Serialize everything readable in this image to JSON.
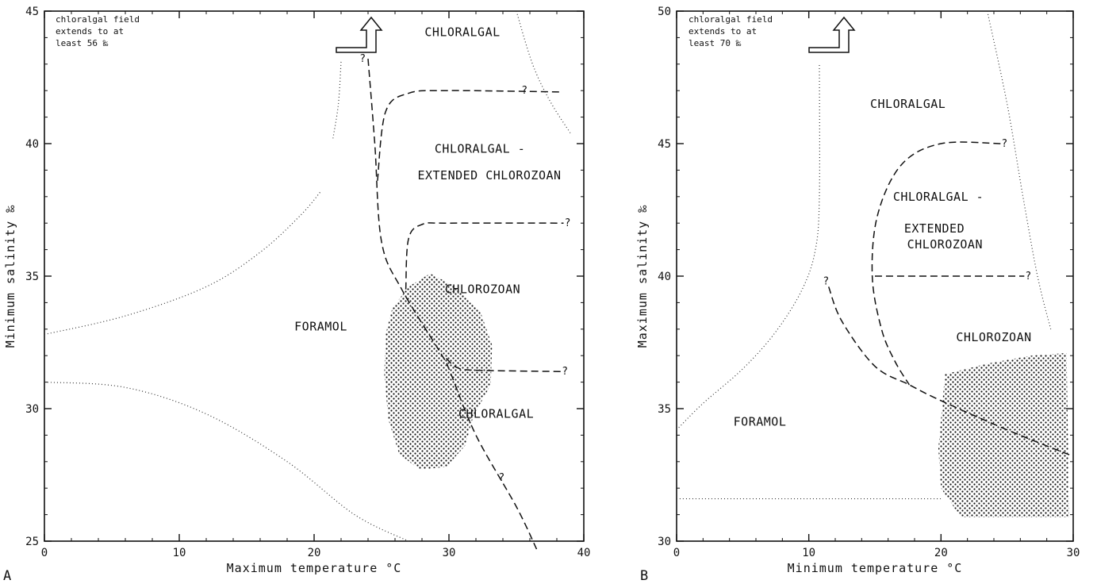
{
  "panel_letters": {
    "a": "A",
    "b": "B"
  },
  "chart_data": [
    {
      "type": "line",
      "panel": "A",
      "xlabel": "Maximum temperature °C",
      "ylabel": "Minimum salinity ‰",
      "xlim": [
        0,
        40
      ],
      "ylim": [
        25,
        45
      ],
      "xticks": [
        0,
        10,
        20,
        30,
        40
      ],
      "yticks": [
        25,
        30,
        35,
        40,
        45
      ],
      "note": [
        "chloralgal field",
        "extends to at",
        "least 56 ‰"
      ],
      "regions": [
        {
          "name": "CHLORALGAL",
          "x": 31,
          "y": 44.2
        },
        {
          "name": "CHLORALGAL -",
          "x": 32.3,
          "y": 39.8
        },
        {
          "name": "EXTENDED CHLOROZOAN",
          "x": 33,
          "y": 38.8
        },
        {
          "name": "CHLOROZOAN",
          "x": 32.5,
          "y": 34.5
        },
        {
          "name": "FORAMOL",
          "x": 20.5,
          "y": 33.1
        },
        {
          "name": "CHLORALGAL",
          "x": 33.5,
          "y": 29.8
        }
      ],
      "dotted_boundaries": [
        {
          "points": [
            [
              0,
              32.8
            ],
            [
              6,
              33.5
            ],
            [
              12,
              34.6
            ],
            [
              16,
              35.9
            ],
            [
              19,
              37.3
            ],
            [
              20.5,
              38.2
            ]
          ]
        },
        {
          "points": [
            [
              21.4,
              40.2
            ],
            [
              21.8,
              41.5
            ],
            [
              22,
              43.1
            ]
          ]
        },
        {
          "points": [
            [
              0,
              31
            ],
            [
              6,
              30.8
            ],
            [
              12,
              29.8
            ],
            [
              18,
              28
            ],
            [
              23,
              26
            ],
            [
              27,
              25
            ]
          ]
        },
        {
          "points": [
            [
              35,
              45
            ],
            [
              36.2,
              43
            ],
            [
              37.5,
              41.6
            ],
            [
              39,
              40.4
            ]
          ]
        }
      ],
      "dashed_boundaries": [
        {
          "points": [
            [
              24,
              43.2
            ],
            [
              24.5,
              40
            ],
            [
              25,
              36.3
            ],
            [
              26.5,
              34.5
            ],
            [
              29.5,
              32
            ],
            [
              30,
              31.5
            ],
            [
              32,
              29
            ],
            [
              35,
              26.3
            ],
            [
              36.5,
              24.7
            ]
          ]
        },
        {
          "points": [
            [
              24.7,
              38.6
            ],
            [
              25.3,
              41.2
            ],
            [
              27,
              41.9
            ],
            [
              30,
              42
            ],
            [
              38.2,
              41.95
            ]
          ]
        },
        {
          "points": [
            [
              26.8,
              34.5
            ],
            [
              27,
              36.4
            ],
            [
              28,
              36.95
            ],
            [
              30,
              37
            ],
            [
              38.5,
              37
            ]
          ]
        },
        {
          "points": [
            [
              29.8,
              31.9
            ],
            [
              30.6,
              31.55
            ],
            [
              32,
              31.45
            ],
            [
              38.3,
              31.4
            ]
          ]
        }
      ],
      "uncertain_marks": [
        {
          "label": "?",
          "x": 23.6,
          "y": 43.2
        },
        {
          "label": "?",
          "x": 35.6,
          "y": 42
        },
        {
          "label": "?",
          "x": 38.8,
          "y": 37
        },
        {
          "label": "?",
          "x": 38.6,
          "y": 31.4
        },
        {
          "label": "?",
          "x": 33.9,
          "y": 27.4
        }
      ],
      "stippled_area": {
        "outline": [
          [
            25.8,
            33.8
          ],
          [
            27,
            34.6
          ],
          [
            28.6,
            35.1
          ],
          [
            30.5,
            34.6
          ],
          [
            32.3,
            33.7
          ],
          [
            33.2,
            32.4
          ],
          [
            33.1,
            30.9
          ],
          [
            31.8,
            29.7
          ],
          [
            31.2,
            28.6
          ],
          [
            29.8,
            27.8
          ],
          [
            27.8,
            27.7
          ],
          [
            26.3,
            28.3
          ],
          [
            25.5,
            29.6
          ],
          [
            25.2,
            31.3
          ],
          [
            25.3,
            32.8
          ]
        ]
      }
    },
    {
      "type": "line",
      "panel": "B",
      "xlabel": "Minimum temperature °C",
      "ylabel": "Maximum salinity ‰",
      "xlim": [
        0,
        30
      ],
      "ylim": [
        30,
        50
      ],
      "xticks": [
        0,
        10,
        20,
        30
      ],
      "yticks": [
        30,
        35,
        40,
        45,
        50
      ],
      "note": [
        "chloralgal field",
        "extends to at",
        "least 70 ‰"
      ],
      "regions": [
        {
          "name": "CHLORALGAL",
          "x": 17.5,
          "y": 46.5
        },
        {
          "name": "CHLORALGAL -",
          "x": 19.8,
          "y": 43
        },
        {
          "name": "EXTENDED",
          "x": 19.5,
          "y": 41.8
        },
        {
          "name": "CHLOROZOAN",
          "x": 20.3,
          "y": 41.2
        },
        {
          "name": "CHLOROZOAN",
          "x": 24,
          "y": 37.7
        },
        {
          "name": "FORAMOL",
          "x": 6.3,
          "y": 34.5
        }
      ],
      "dotted_boundaries": [
        {
          "points": [
            [
              0,
              34.2
            ],
            [
              2,
              35.2
            ],
            [
              5,
              36.5
            ],
            [
              7.5,
              37.9
            ],
            [
              9.5,
              39.5
            ],
            [
              10.5,
              41
            ],
            [
              10.8,
              43
            ],
            [
              10.8,
              48
            ]
          ]
        },
        {
          "points": [
            [
              0,
              31.6
            ],
            [
              10,
              31.6
            ],
            [
              20,
              31.6
            ]
          ]
        },
        {
          "points": [
            [
              23.5,
              50
            ],
            [
              25,
              46.5
            ],
            [
              26.2,
              43
            ],
            [
              27.3,
              40
            ],
            [
              28.3,
              38
            ]
          ]
        }
      ],
      "dashed_boundaries": [
        {
          "points": [
            [
              24.5,
              45
            ],
            [
              20,
              45
            ],
            [
              17,
              44.2
            ],
            [
              15.2,
              42.3
            ],
            [
              14.8,
              40
            ],
            [
              15.5,
              38
            ],
            [
              16.5,
              36.8
            ],
            [
              17.6,
              35.9
            ]
          ]
        },
        {
          "points": [
            [
              11.5,
              39.6
            ],
            [
              12.5,
              38.3
            ],
            [
              15,
              36.6
            ],
            [
              17.6,
              35.9
            ],
            [
              20,
              35.3
            ],
            [
              25,
              34.2
            ],
            [
              30,
              33.2
            ]
          ]
        },
        {
          "points": [
            [
              15,
              40
            ],
            [
              26.3,
              40
            ]
          ]
        }
      ],
      "uncertain_marks": [
        {
          "label": "?",
          "x": 11.3,
          "y": 39.8
        },
        {
          "label": "?",
          "x": 24.8,
          "y": 45
        },
        {
          "label": "?",
          "x": 26.6,
          "y": 40
        }
      ],
      "stippled_area": {
        "outline": [
          [
            20.3,
            36.3
          ],
          [
            23.5,
            36.7
          ],
          [
            26.8,
            37
          ],
          [
            29.5,
            37.1
          ],
          [
            29.7,
            30.9
          ],
          [
            21.5,
            30.9
          ],
          [
            20,
            32
          ],
          [
            19.8,
            33.5
          ]
        ]
      }
    }
  ]
}
